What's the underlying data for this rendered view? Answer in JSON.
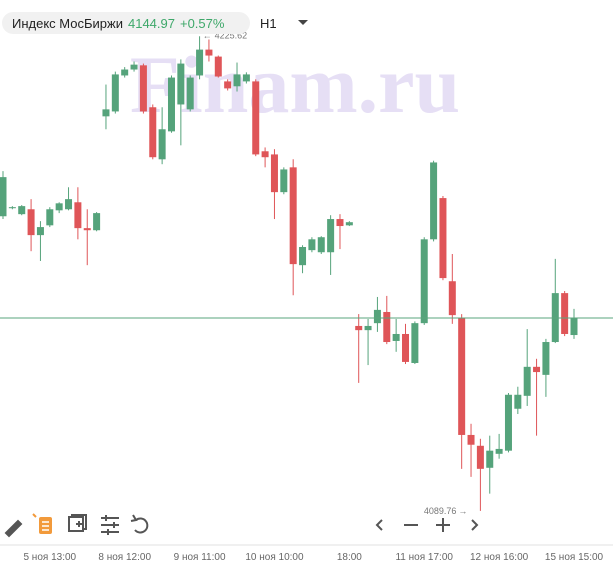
{
  "header": {
    "instrument": "Индекс МосБиржи",
    "change": "+0.57%",
    "interval": "H1"
  },
  "chart_data": {
    "type": "candlestick",
    "watermark": "Finam.ru",
    "last": 4144.97,
    "annotations": [
      "4225.62",
      "4089.76"
    ],
    "up_color": "#55a37b",
    "down_color": "#df5558",
    "last_line_color": "#5aa57c",
    "ylim": [
      4080,
      4236
    ],
    "categories": [
      null,
      null,
      null,
      null,
      null,
      "5 ноя 13:00",
      null,
      null,
      null,
      null,
      null,
      null,
      null,
      "8 ноя 12:00",
      null,
      null,
      null,
      null,
      null,
      null,
      null,
      "9 ноя 11:00",
      null,
      null,
      null,
      null,
      null,
      null,
      null,
      "10 ноя 10:00",
      null,
      null,
      null,
      null,
      null,
      null,
      null,
      "18:00",
      null,
      null,
      null,
      null,
      null,
      null,
      null,
      "11 ноя 17:00",
      null,
      null,
      null,
      null,
      null,
      null,
      null,
      "12 ноя 16:00",
      null,
      null,
      null,
      null,
      null,
      null,
      null,
      "15 ноя 15:00"
    ],
    "open": [
      4174.1,
      4176.4,
      4174.7,
      4176.1,
      4168.7,
      4171.5,
      4175.8,
      4176.1,
      4178.1,
      4170.7,
      4170.1,
      4202.7,
      4204.1,
      4214.4,
      4216.1,
      4217.3,
      4205.3,
      4190.4,
      4198.4,
      4206.1,
      4204.7,
      4214.4,
      4221.8,
      4219.8,
      4212.7,
      4211.3,
      4212.7,
      4212.7,
      4192.7,
      4191.8,
      4181.0,
      4188.1,
      4160.1,
      4164.4,
      4163.8,
      4163.8,
      4173.3,
      4171.5,
      4142.7,
      4141.5,
      4143.5,
      4146.7,
      4138.4,
      4140.4,
      4132.1,
      4143.5,
      4167.5,
      4179.3,
      4155.5,
      4145.0,
      4111.5,
      4108.4,
      4102.1,
      4106.1,
      4107.0,
      4119.0,
      4122.7,
      4131.0,
      4128.7,
      4138.1,
      4152.1,
      4140.1
    ],
    "high": [
      4187.0,
      4177.0,
      4177.3,
      4179.0,
      4172.7,
      4176.7,
      4178.1,
      4182.4,
      4182.4,
      4176.1,
      4175.3,
      4211.8,
      4215.5,
      4216.8,
      4218.4,
      4217.8,
      4206.1,
      4205.3,
      4214.4,
      4219.0,
      4214.4,
      4225.62,
      4224.7,
      4220.1,
      4213.3,
      4218.1,
      4215.3,
      4213.3,
      4193.8,
      4193.3,
      4188.1,
      4190.4,
      4165.8,
      4168.1,
      4168.4,
      4174.4,
      4174.7,
      4172.7,
      4146.1,
      4144.7,
      4151.0,
      4151.3,
      4144.7,
      4143.3,
      4144.0,
      4168.1,
      4190.0,
      4179.9,
      4163.3,
      4146.1,
      4114.7,
      4110.4,
      4111.3,
      4111.8,
      4123.5,
      4125.3,
      4141.8,
      4133.3,
      4139.0,
      4161.9,
      4152.7,
      4147.6
    ],
    "low": [
      4173.3,
      4176.1,
      4174.4,
      4164.1,
      4161.3,
      4171.0,
      4175.0,
      4175.8,
      4167.5,
      4160.1,
      4169.8,
      4199.0,
      4203.5,
      4213.8,
      4215.5,
      4203.5,
      4190.4,
      4189.0,
      4198.0,
      4194.4,
      4204.1,
      4213.3,
      4218.4,
      4213.8,
      4210.1,
      4209.8,
      4212.1,
      4191.3,
      4188.1,
      4173.3,
      4180.4,
      4151.5,
      4157.8,
      4163.8,
      4163.3,
      4157.3,
      4164.7,
      4171.3,
      4126.4,
      4131.5,
      4141.0,
      4137.5,
      4135.3,
      4131.8,
      4131.8,
      4143.0,
      4166.9,
      4155.8,
      4143.3,
      4101.8,
      4099.5,
      4089.76,
      4094.7,
      4104.7,
      4106.5,
      4117.5,
      4119.8,
      4111.3,
      4122.4,
      4137.8,
      4139.8,
      4139.0
    ],
    "close": [
      4185.3,
      4176.7,
      4177.0,
      4168.7,
      4171.0,
      4176.1,
      4177.8,
      4179.0,
      4170.7,
      4170.1,
      4175.0,
      4204.7,
      4214.7,
      4216.1,
      4217.5,
      4204.1,
      4191.0,
      4199.0,
      4213.8,
      4217.8,
      4213.8,
      4221.8,
      4220.1,
      4214.1,
      4210.7,
      4214.7,
      4214.7,
      4191.8,
      4191.0,
      4181.0,
      4187.5,
      4160.4,
      4165.3,
      4167.5,
      4168.1,
      4173.3,
      4171.3,
      4172.4,
      4141.5,
      4142.7,
      4147.3,
      4138.1,
      4140.4,
      4132.4,
      4143.5,
      4167.5,
      4189.5,
      4156.4,
      4145.8,
      4111.5,
      4108.7,
      4101.8,
      4107.0,
      4107.5,
      4123.0,
      4123.0,
      4131.0,
      4129.5,
      4138.1,
      4152.1,
      4140.4,
      4144.97
    ]
  }
}
